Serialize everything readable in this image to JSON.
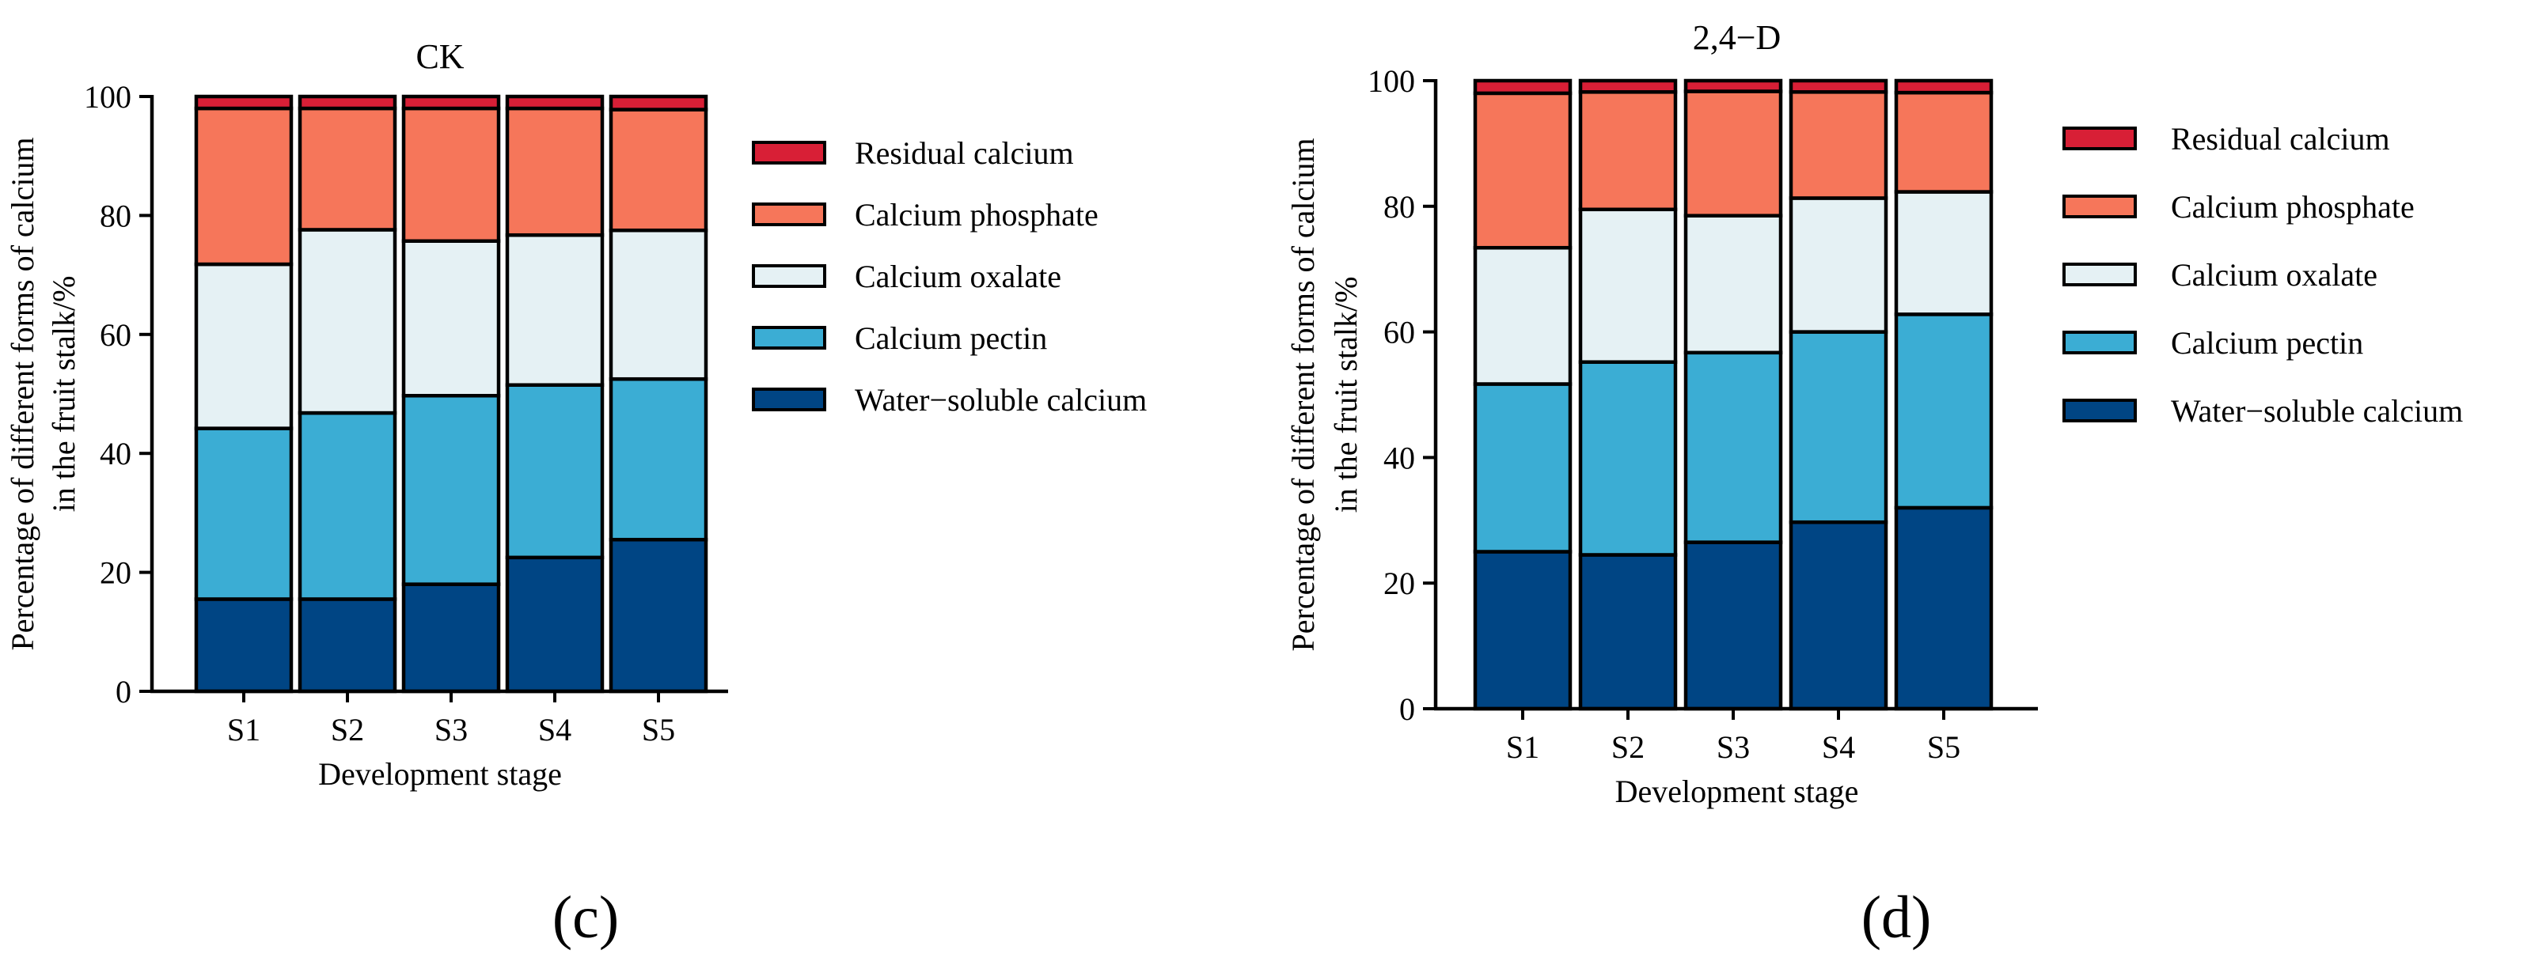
{
  "chart_data": [
    {
      "type": "bar",
      "stacked": true,
      "title": "CK",
      "xlabel": "Development stage",
      "ylabel": "Percentage of different forms of calcium in the fruit stalk/%",
      "ylabel_lines": [
        "Percentage of different forms of calcium",
        "in the fruit stalk/%"
      ],
      "ylim": [
        0,
        100
      ],
      "yticks": [
        "0",
        "20",
        "40",
        "60",
        "80",
        "100"
      ],
      "categories": [
        "S1",
        "S2",
        "S3",
        "S4",
        "S5"
      ],
      "series": [
        {
          "name": "Water−soluble calcium",
          "color": "#004584",
          "values": [
            15.5,
            15.5,
            18,
            22.5,
            25.5
          ]
        },
        {
          "name": "Calcium pectin",
          "color": "#3badd4",
          "values": [
            28.7,
            31.3,
            31.7,
            29,
            27
          ]
        },
        {
          "name": "Calcium oxalate",
          "color": "#e5f1f4",
          "values": [
            27.6,
            30.8,
            26,
            25.2,
            25
          ]
        },
        {
          "name": "Calcium phosphate",
          "color": "#f6765a",
          "values": [
            26.2,
            20.4,
            22.3,
            21.3,
            20.3
          ]
        },
        {
          "name": "Residual calcium",
          "color": "#d81f36",
          "values": [
            2.0,
            2.0,
            2.0,
            2.0,
            2.2
          ]
        }
      ],
      "legend": [
        "Residual calcium",
        "Calcium phosphate",
        "Calcium oxalate",
        "Calcium pectin",
        "Water−soluble calcium"
      ],
      "panel_label": "(c)"
    },
    {
      "type": "bar",
      "stacked": true,
      "title": "2,4−D",
      "xlabel": "Development stage",
      "ylabel": "Percentage of different forms of calcium in the fruit stalk/%",
      "ylabel_lines": [
        "Percentage of different forms of calcium",
        "in the fruit stalk/%"
      ],
      "ylim": [
        0,
        100
      ],
      "yticks": [
        "0",
        "20",
        "40",
        "60",
        "80",
        "100"
      ],
      "categories": [
        "S1",
        "S2",
        "S3",
        "S4",
        "S5"
      ],
      "series": [
        {
          "name": "Water−soluble calcium",
          "color": "#004584",
          "values": [
            25,
            24.5,
            26.5,
            29.7,
            32
          ]
        },
        {
          "name": "Calcium pectin",
          "color": "#3badd4",
          "values": [
            26.7,
            30.7,
            30.2,
            30.3,
            30.8
          ]
        },
        {
          "name": "Calcium oxalate",
          "color": "#e5f1f4",
          "values": [
            21.7,
            24.3,
            21.8,
            21.3,
            19.5
          ]
        },
        {
          "name": "Calcium phosphate",
          "color": "#f6765a",
          "values": [
            24.6,
            18.7,
            19.8,
            16.9,
            15.8
          ]
        },
        {
          "name": "Residual calcium",
          "color": "#d81f36",
          "values": [
            2.0,
            1.8,
            1.7,
            1.8,
            1.9
          ]
        }
      ],
      "legend": [
        "Residual calcium",
        "Calcium phosphate",
        "Calcium oxalate",
        "Calcium pectin",
        "Water−soluble calcium"
      ],
      "panel_label": "(d)"
    }
  ]
}
